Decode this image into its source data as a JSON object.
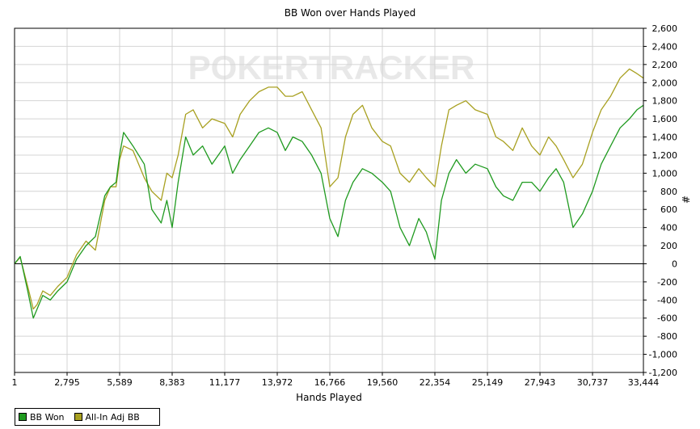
{
  "chart_data": {
    "type": "line",
    "title": "BB Won over Hands Played",
    "xlabel": "Hands Played",
    "ylabel": "#",
    "xlim": [
      1,
      33444
    ],
    "ylim": [
      -1200,
      2600
    ],
    "x_ticks": [
      "1",
      "2,795",
      "5,589",
      "8,383",
      "11,177",
      "13,972",
      "16,766",
      "19,560",
      "22,354",
      "25,149",
      "27,943",
      "30,737",
      "33,444"
    ],
    "y_ticks": [
      "2,600",
      "2,400",
      "2,200",
      "2,000",
      "1,800",
      "1,600",
      "1,400",
      "1,200",
      "1,000",
      "800",
      "600",
      "400",
      "200",
      "0",
      "-200",
      "-400",
      "-600",
      "-800",
      "-1,000",
      "-1,200"
    ],
    "grid": true,
    "legend_position": "bottom-left",
    "watermark": "POKERTRACKER",
    "series": [
      {
        "name": "BB Won",
        "color": "#1f9a1f",
        "x": [
          1,
          300,
          700,
          1000,
          1200,
          1500,
          1900,
          2300,
          2795,
          3300,
          3800,
          4300,
          4800,
          5100,
          5400,
          5589,
          5800,
          6300,
          6900,
          7300,
          7800,
          8100,
          8383,
          8700,
          9100,
          9500,
          10000,
          10500,
          11177,
          11600,
          12000,
          12500,
          13000,
          13500,
          13972,
          14400,
          14800,
          15300,
          15800,
          16300,
          16766,
          17200,
          17600,
          18000,
          18500,
          19000,
          19560,
          20000,
          20500,
          21000,
          21500,
          21900,
          22354,
          22700,
          23100,
          23500,
          24000,
          24500,
          25149,
          25600,
          26000,
          26500,
          27000,
          27500,
          27943,
          28400,
          28800,
          29200,
          29700,
          30200,
          30737,
          31200,
          31700,
          32200,
          32700,
          33100,
          33444
        ],
        "values": [
          0,
          80,
          -300,
          -600,
          -500,
          -350,
          -400,
          -300,
          -200,
          50,
          200,
          300,
          750,
          850,
          900,
          1200,
          1450,
          1300,
          1100,
          600,
          450,
          700,
          400,
          900,
          1400,
          1200,
          1300,
          1100,
          1300,
          1000,
          1150,
          1300,
          1450,
          1500,
          1450,
          1250,
          1400,
          1350,
          1200,
          1000,
          500,
          300,
          700,
          900,
          1050,
          1000,
          900,
          800,
          400,
          200,
          500,
          350,
          50,
          700,
          1000,
          1150,
          1000,
          1100,
          1050,
          850,
          750,
          700,
          900,
          900,
          800,
          950,
          1050,
          900,
          400,
          550,
          800,
          1100,
          1300,
          1500,
          1600,
          1700,
          1750
        ]
      },
      {
        "name": "All-In Adj BB",
        "color": "#a8a020",
        "x": [
          1,
          300,
          700,
          1000,
          1200,
          1500,
          1900,
          2300,
          2795,
          3300,
          3800,
          4300,
          4800,
          5100,
          5400,
          5589,
          5800,
          6300,
          6900,
          7300,
          7800,
          8100,
          8383,
          8700,
          9100,
          9500,
          10000,
          10500,
          11177,
          11600,
          12000,
          12500,
          13000,
          13500,
          13972,
          14400,
          14800,
          15300,
          15800,
          16300,
          16766,
          17200,
          17600,
          18000,
          18500,
          19000,
          19560,
          20000,
          20500,
          21000,
          21500,
          21900,
          22354,
          22700,
          23100,
          23500,
          24000,
          24500,
          25149,
          25600,
          26000,
          26500,
          27000,
          27500,
          27943,
          28400,
          28800,
          29200,
          29700,
          30200,
          30737,
          31200,
          31700,
          32200,
          32700,
          33100,
          33444
        ],
        "values": [
          0,
          70,
          -250,
          -500,
          -450,
          -300,
          -350,
          -250,
          -150,
          100,
          250,
          150,
          700,
          850,
          850,
          1150,
          1300,
          1250,
          950,
          800,
          700,
          1000,
          950,
          1200,
          1650,
          1700,
          1500,
          1600,
          1550,
          1400,
          1650,
          1800,
          1900,
          1950,
          1950,
          1850,
          1850,
          1900,
          1700,
          1500,
          850,
          950,
          1400,
          1650,
          1750,
          1500,
          1350,
          1300,
          1000,
          900,
          1050,
          950,
          850,
          1300,
          1700,
          1750,
          1800,
          1700,
          1650,
          1400,
          1350,
          1250,
          1500,
          1300,
          1200,
          1400,
          1300,
          1150,
          950,
          1100,
          1450,
          1700,
          1850,
          2050,
          2150,
          2100,
          2050
        ]
      }
    ]
  }
}
